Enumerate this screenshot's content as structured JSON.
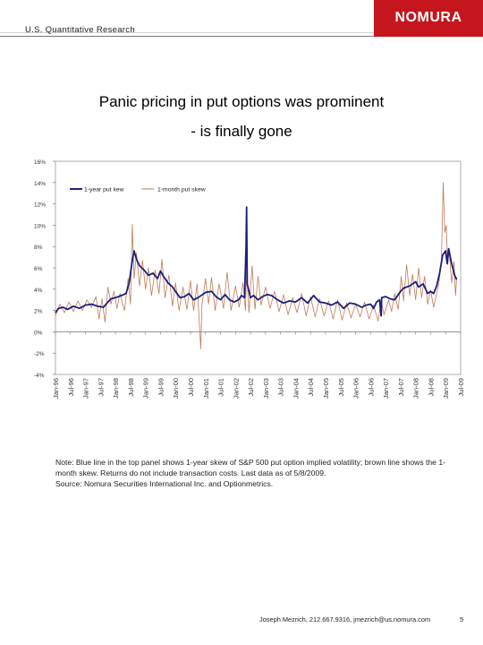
{
  "header": {
    "label": "U.S. Quantitative Research",
    "logo": "NOMURA",
    "logo_color": "#c4161c"
  },
  "title": {
    "line1": "Panic pricing in put options was prominent",
    "line2": "- is finally gone"
  },
  "footer": {
    "note": "Note: Blue line in the top panel shows 1-year skew of S&P 500 put option implied volatility; brown line shows the 1-month skew. Returns do not include transaction costs. Last data as of 5/8/2009.",
    "source": "Source: Nomura Securities International Inc. and Optionmetrics.",
    "contact": "Joseph Mezrich, 212.667.9316, jmezrich@us.nomura.com",
    "page_number": "5"
  },
  "chart_data": {
    "type": "line",
    "ylim": [
      -4,
      16
    ],
    "yticks": [
      -4,
      -2,
      0,
      2,
      4,
      6,
      8,
      10,
      12,
      14,
      16
    ],
    "ytick_labels": [
      "-4%",
      "-2%",
      "0%",
      "2%",
      "4%",
      "6%",
      "8%",
      "10%",
      "12%",
      "14%",
      "16%"
    ],
    "xlim": [
      1996.0,
      2009.5
    ],
    "xtick_labels": [
      "Jan-96",
      "Jul-96",
      "Jan-97",
      "Jul-97",
      "Jan-98",
      "Jul-98",
      "Jan-99",
      "Jul-99",
      "Jan-00",
      "Jul-00",
      "Jan-01",
      "Jul-01",
      "Jan-02",
      "Jul-02",
      "Jan-03",
      "Jul-03",
      "Jan-04",
      "Jul-04",
      "Jan-05",
      "Jul-05",
      "Jan-06",
      "Jul-06",
      "Jan-07",
      "Jul-07",
      "Jan-08",
      "Jul-08",
      "Jan-09",
      "Jul-09"
    ],
    "legend_position": "top-left",
    "series": [
      {
        "name": "1-year put kew",
        "color": "#1a1f7a",
        "points": [
          [
            1996.0,
            1.8
          ],
          [
            1996.1,
            2.2
          ],
          [
            1996.25,
            2.3
          ],
          [
            1996.4,
            2.1
          ],
          [
            1996.6,
            2.4
          ],
          [
            1996.8,
            2.2
          ],
          [
            1997.0,
            2.5
          ],
          [
            1997.2,
            2.6
          ],
          [
            1997.4,
            2.4
          ],
          [
            1997.6,
            2.3
          ],
          [
            1997.75,
            2.8
          ],
          [
            1997.85,
            3.1
          ],
          [
            1998.0,
            3.2
          ],
          [
            1998.2,
            3.4
          ],
          [
            1998.35,
            3.6
          ],
          [
            1998.45,
            4.5
          ],
          [
            1998.55,
            6.5
          ],
          [
            1998.62,
            7.6
          ],
          [
            1998.7,
            6.8
          ],
          [
            1998.8,
            6.2
          ],
          [
            1998.95,
            5.8
          ],
          [
            1999.1,
            5.3
          ],
          [
            1999.25,
            5.5
          ],
          [
            1999.4,
            5.0
          ],
          [
            1999.5,
            5.7
          ],
          [
            1999.6,
            5.2
          ],
          [
            1999.75,
            4.6
          ],
          [
            1999.9,
            4.2
          ],
          [
            2000.0,
            3.8
          ],
          [
            2000.15,
            3.2
          ],
          [
            2000.3,
            3.3
          ],
          [
            2000.45,
            3.6
          ],
          [
            2000.6,
            3.0
          ],
          [
            2000.75,
            3.2
          ],
          [
            2000.9,
            3.5
          ],
          [
            2001.0,
            3.7
          ],
          [
            2001.2,
            3.8
          ],
          [
            2001.35,
            3.3
          ],
          [
            2001.5,
            3.0
          ],
          [
            2001.65,
            3.5
          ],
          [
            2001.8,
            3.0
          ],
          [
            2001.95,
            2.8
          ],
          [
            2002.1,
            3.0
          ],
          [
            2002.2,
            3.4
          ],
          [
            2002.3,
            3.2
          ],
          [
            2002.35,
            8.0
          ],
          [
            2002.37,
            11.7
          ],
          [
            2002.39,
            4.5
          ],
          [
            2002.5,
            3.2
          ],
          [
            2002.6,
            3.4
          ],
          [
            2002.75,
            3.0
          ],
          [
            2002.9,
            3.3
          ],
          [
            2003.05,
            3.5
          ],
          [
            2003.2,
            3.4
          ],
          [
            2003.4,
            3.0
          ],
          [
            2003.6,
            2.7
          ],
          [
            2003.8,
            2.9
          ],
          [
            2004.0,
            2.8
          ],
          [
            2004.2,
            3.2
          ],
          [
            2004.4,
            2.7
          ],
          [
            2004.6,
            3.4
          ],
          [
            2004.8,
            2.8
          ],
          [
            2005.0,
            2.7
          ],
          [
            2005.2,
            2.5
          ],
          [
            2005.4,
            2.8
          ],
          [
            2005.6,
            2.2
          ],
          [
            2005.8,
            2.7
          ],
          [
            2006.0,
            2.6
          ],
          [
            2006.2,
            2.3
          ],
          [
            2006.35,
            2.5
          ],
          [
            2006.5,
            2.6
          ],
          [
            2006.6,
            2.2
          ],
          [
            2006.7,
            2.8
          ],
          [
            2006.8,
            3.0
          ],
          [
            2006.85,
            1.5
          ],
          [
            2006.87,
            3.2
          ],
          [
            2007.0,
            3.3
          ],
          [
            2007.15,
            3.1
          ],
          [
            2007.3,
            3.0
          ],
          [
            2007.5,
            3.8
          ],
          [
            2007.6,
            4.1
          ],
          [
            2007.8,
            4.3
          ],
          [
            2008.0,
            4.7
          ],
          [
            2008.1,
            4.2
          ],
          [
            2008.25,
            4.5
          ],
          [
            2008.4,
            3.6
          ],
          [
            2008.5,
            3.8
          ],
          [
            2008.6,
            3.6
          ],
          [
            2008.7,
            4.3
          ],
          [
            2008.8,
            5.5
          ],
          [
            2008.9,
            7.2
          ],
          [
            2009.0,
            7.6
          ],
          [
            2009.05,
            6.4
          ],
          [
            2009.1,
            7.8
          ],
          [
            2009.2,
            6.4
          ],
          [
            2009.3,
            5.3
          ],
          [
            2009.37,
            4.9
          ]
        ]
      },
      {
        "name": "1-month put skew",
        "color": "#c07a57",
        "points": [
          [
            1996.0,
            1.5
          ],
          [
            1996.15,
            2.6
          ],
          [
            1996.3,
            1.8
          ],
          [
            1996.45,
            2.8
          ],
          [
            1996.6,
            1.9
          ],
          [
            1996.75,
            2.9
          ],
          [
            1996.9,
            2.0
          ],
          [
            1997.05,
            3.0
          ],
          [
            1997.2,
            2.3
          ],
          [
            1997.35,
            3.3
          ],
          [
            1997.45,
            1.2
          ],
          [
            1997.55,
            3.1
          ],
          [
            1997.65,
            0.9
          ],
          [
            1997.75,
            4.2
          ],
          [
            1997.85,
            2.6
          ],
          [
            1997.95,
            3.8
          ],
          [
            1998.05,
            2.2
          ],
          [
            1998.15,
            3.6
          ],
          [
            1998.3,
            2.0
          ],
          [
            1998.42,
            5.0
          ],
          [
            1998.5,
            2.6
          ],
          [
            1998.56,
            10.1
          ],
          [
            1998.62,
            5.0
          ],
          [
            1998.7,
            7.4
          ],
          [
            1998.8,
            4.3
          ],
          [
            1998.9,
            6.7
          ],
          [
            1999.0,
            4.0
          ],
          [
            1999.1,
            6.0
          ],
          [
            1999.2,
            3.4
          ],
          [
            1999.32,
            5.8
          ],
          [
            1999.45,
            3.6
          ],
          [
            1999.55,
            6.8
          ],
          [
            1999.65,
            3.2
          ],
          [
            1999.78,
            5.3
          ],
          [
            1999.9,
            2.4
          ],
          [
            2000.0,
            4.6
          ],
          [
            2000.12,
            2.0
          ],
          [
            2000.25,
            4.2
          ],
          [
            2000.38,
            2.1
          ],
          [
            2000.5,
            4.8
          ],
          [
            2000.6,
            2.0
          ],
          [
            2000.72,
            4.5
          ],
          [
            2000.8,
            0.5
          ],
          [
            2000.84,
            -1.6
          ],
          [
            2000.88,
            2.5
          ],
          [
            2001.0,
            5.0
          ],
          [
            2001.1,
            2.6
          ],
          [
            2001.2,
            5.1
          ],
          [
            2001.32,
            2.0
          ],
          [
            2001.45,
            4.5
          ],
          [
            2001.6,
            2.2
          ],
          [
            2001.72,
            5.6
          ],
          [
            2001.85,
            2.0
          ],
          [
            2002.0,
            4.3
          ],
          [
            2002.12,
            2.3
          ],
          [
            2002.25,
            4.6
          ],
          [
            2002.33,
            2.0
          ],
          [
            2002.37,
            5.8
          ],
          [
            2002.45,
            1.8
          ],
          [
            2002.55,
            6.2
          ],
          [
            2002.65,
            2.1
          ],
          [
            2002.75,
            5.2
          ],
          [
            2002.85,
            2.5
          ],
          [
            2003.0,
            4.2
          ],
          [
            2003.15,
            2.2
          ],
          [
            2003.3,
            3.8
          ],
          [
            2003.45,
            1.9
          ],
          [
            2003.6,
            3.5
          ],
          [
            2003.75,
            1.6
          ],
          [
            2003.9,
            3.2
          ],
          [
            2004.05,
            1.8
          ],
          [
            2004.2,
            3.6
          ],
          [
            2004.35,
            1.5
          ],
          [
            2004.5,
            3.3
          ],
          [
            2004.65,
            1.4
          ],
          [
            2004.8,
            3.1
          ],
          [
            2004.95,
            1.5
          ],
          [
            2005.1,
            2.9
          ],
          [
            2005.25,
            1.2
          ],
          [
            2005.4,
            3.0
          ],
          [
            2005.55,
            1.1
          ],
          [
            2005.7,
            2.7
          ],
          [
            2005.85,
            1.3
          ],
          [
            2006.0,
            2.6
          ],
          [
            2006.15,
            1.4
          ],
          [
            2006.3,
            2.8
          ],
          [
            2006.45,
            1.2
          ],
          [
            2006.6,
            2.5
          ],
          [
            2006.75,
            1.0
          ],
          [
            2006.85,
            2.9
          ],
          [
            2006.95,
            1.6
          ],
          [
            2007.1,
            3.0
          ],
          [
            2007.2,
            1.9
          ],
          [
            2007.3,
            3.6
          ],
          [
            2007.42,
            2.1
          ],
          [
            2007.52,
            5.2
          ],
          [
            2007.6,
            2.9
          ],
          [
            2007.7,
            6.3
          ],
          [
            2007.8,
            3.4
          ],
          [
            2007.9,
            5.4
          ],
          [
            2008.0,
            3.0
          ],
          [
            2008.1,
            6.0
          ],
          [
            2008.2,
            3.2
          ],
          [
            2008.3,
            5.2
          ],
          [
            2008.4,
            2.6
          ],
          [
            2008.5,
            3.9
          ],
          [
            2008.6,
            2.3
          ],
          [
            2008.7,
            3.6
          ],
          [
            2008.78,
            4.6
          ],
          [
            2008.86,
            6.8
          ],
          [
            2008.92,
            14.0
          ],
          [
            2008.97,
            9.3
          ],
          [
            2009.02,
            10.0
          ],
          [
            2009.07,
            6.3
          ],
          [
            2009.12,
            7.6
          ],
          [
            2009.2,
            4.6
          ],
          [
            2009.28,
            6.6
          ],
          [
            2009.33,
            3.4
          ],
          [
            2009.37,
            5.1
          ]
        ]
      }
    ]
  }
}
